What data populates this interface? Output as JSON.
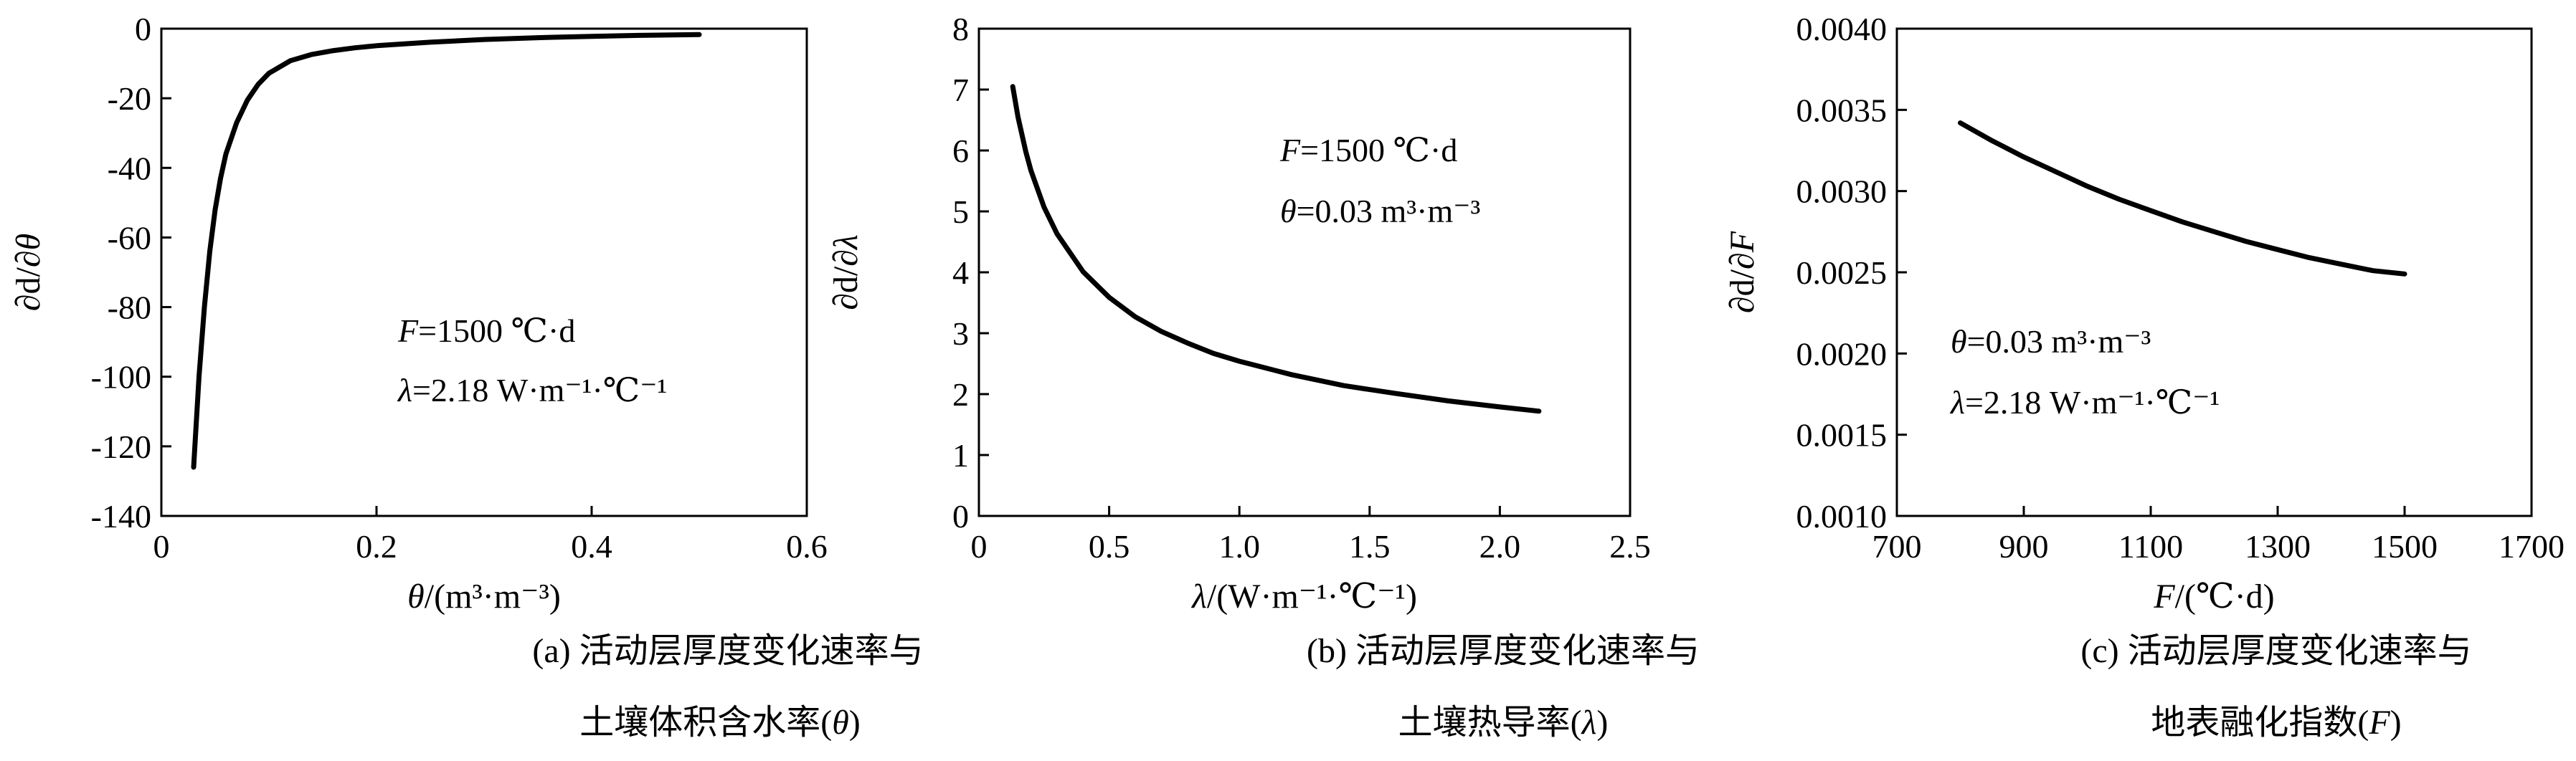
{
  "chart_data": [
    {
      "panel": "a",
      "type": "line",
      "xlabel": "θ/(m³·m⁻³)",
      "ylabel": "∂d/∂θ",
      "xlim": [
        0,
        0.6
      ],
      "ylim": [
        -140,
        0
      ],
      "x_ticks": [
        0,
        0.2,
        0.4,
        0.6
      ],
      "y_ticks": [
        0,
        -20,
        -40,
        -60,
        -80,
        -100,
        -120,
        -140
      ],
      "x_tick_labels": [
        "0",
        "0.2",
        "0.4",
        "0.6"
      ],
      "y_tick_labels": [
        "0",
        "-20",
        "-40",
        "-60",
        "-80",
        "-100",
        "-120",
        "-140"
      ],
      "annotations": [
        "F=1500 ℃·d",
        "λ=2.18 W·m⁻¹·℃⁻¹"
      ],
      "caption": [
        "(a) 活动层厚度变化速率与",
        "土壤体积含水率(θ)"
      ],
      "series": [
        {
          "x": [
            0.03,
            0.035,
            0.04,
            0.045,
            0.05,
            0.055,
            0.06,
            0.07,
            0.08,
            0.09,
            0.1,
            0.12,
            0.14,
            0.16,
            0.18,
            0.2,
            0.25,
            0.3,
            0.35,
            0.4,
            0.45,
            0.5
          ],
          "y": [
            -126,
            -100,
            -80,
            -64,
            -52,
            -43,
            -36,
            -27,
            -20.5,
            -16,
            -12.8,
            -9.2,
            -7.4,
            -6.3,
            -5.5,
            -4.9,
            -3.9,
            -3.1,
            -2.6,
            -2.2,
            -1.9,
            -1.7
          ]
        }
      ]
    },
    {
      "panel": "b",
      "type": "line",
      "xlabel": "λ/(W·m⁻¹·℃⁻¹)",
      "ylabel": "∂d/∂λ",
      "xlim": [
        0,
        2.5
      ],
      "ylim": [
        0,
        8
      ],
      "x_ticks": [
        0,
        0.5,
        1.0,
        1.5,
        2.0,
        2.5
      ],
      "y_ticks": [
        0,
        1,
        2,
        3,
        4,
        5,
        6,
        7,
        8
      ],
      "x_tick_labels": [
        "0",
        "0.5",
        "1.0",
        "1.5",
        "2.0",
        "2.5"
      ],
      "y_tick_labels": [
        "0",
        "1",
        "2",
        "3",
        "4",
        "5",
        "6",
        "7",
        "8"
      ],
      "annotations": [
        "F=1500 ℃·d",
        "θ=0.03 m³·m⁻³"
      ],
      "caption": [
        "(b) 活动层厚度变化速率与",
        "土壤热导率(λ)"
      ],
      "series": [
        {
          "x": [
            0.13,
            0.15,
            0.18,
            0.2,
            0.25,
            0.3,
            0.4,
            0.5,
            0.6,
            0.7,
            0.8,
            0.9,
            1.0,
            1.2,
            1.4,
            1.6,
            1.8,
            2.0,
            2.15
          ],
          "y": [
            7.05,
            6.55,
            5.98,
            5.67,
            5.07,
            4.63,
            4.01,
            3.59,
            3.27,
            3.03,
            2.84,
            2.67,
            2.54,
            2.32,
            2.14,
            2.01,
            1.89,
            1.79,
            1.72
          ]
        }
      ]
    },
    {
      "panel": "c",
      "type": "line",
      "xlabel": "F/(℃·d)",
      "ylabel": "∂d/∂F",
      "xlim": [
        700,
        1700
      ],
      "ylim": [
        0.001,
        0.004
      ],
      "x_ticks": [
        700,
        900,
        1100,
        1300,
        1500,
        1700
      ],
      "y_ticks": [
        0.001,
        0.0015,
        0.002,
        0.0025,
        0.003,
        0.0035,
        0.004
      ],
      "x_tick_labels": [
        "700",
        "900",
        "1100",
        "1300",
        "1500",
        "1700"
      ],
      "y_tick_labels": [
        "0.0010",
        "0.0015",
        "0.0020",
        "0.0025",
        "0.0030",
        "0.0035",
        "0.0040"
      ],
      "annotations": [
        "θ=0.03 m³·m⁻³",
        "λ=2.18 W·m⁻¹·℃⁻¹"
      ],
      "caption": [
        "(c) 活动层厚度变化速率与",
        "地表融化指数(F)"
      ],
      "series": [
        {
          "x": [
            800,
            850,
            900,
            950,
            1000,
            1050,
            1100,
            1150,
            1200,
            1250,
            1300,
            1350,
            1400,
            1450,
            1500
          ],
          "y": [
            0.00342,
            0.00331,
            0.00321,
            0.00312,
            0.00303,
            0.00295,
            0.00288,
            0.00281,
            0.00275,
            0.00269,
            0.00264,
            0.00259,
            0.00255,
            0.00251,
            0.00249
          ]
        }
      ]
    }
  ]
}
